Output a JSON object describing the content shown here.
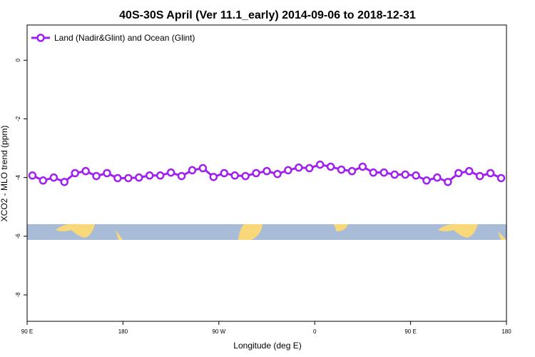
{
  "chart_data": {
    "type": "line",
    "title": "40S-30S April (Ver 11.1_early)   2014-09-06 to 2018-12-31",
    "xlabel": "Longitude (deg E)",
    "ylabel": "XCO2 - MLO trend (ppm)",
    "legend": "upper left",
    "x": [
      95,
      105,
      115,
      125,
      135,
      145,
      155,
      165,
      175,
      185,
      195,
      205,
      215,
      225,
      235,
      245,
      255,
      265,
      275,
      285,
      295,
      305,
      315,
      325,
      335,
      345,
      355,
      365,
      375,
      385,
      395,
      405,
      415,
      425,
      435,
      445,
      455,
      465,
      475,
      485,
      495,
      505,
      515,
      525,
      535
    ],
    "series": [
      {
        "name": "Land (Nadir&Glint) and Ocean (Glint)",
        "color": "#a020f0",
        "values": [
          -3.93,
          -4.1,
          -4.0,
          -4.15,
          -3.85,
          -3.78,
          -3.95,
          -3.85,
          -4.02,
          -4.02,
          -4.0,
          -3.93,
          -3.93,
          -3.83,
          -3.95,
          -3.75,
          -3.68,
          -3.98,
          -3.85,
          -3.93,
          -3.95,
          -3.85,
          -3.78,
          -3.88,
          -3.75,
          -3.66,
          -3.68,
          -3.56,
          -3.63,
          -3.73,
          -3.78,
          -3.63,
          -3.83,
          -3.83,
          -3.9,
          -3.9,
          -3.93,
          -4.1,
          -4.0,
          -4.15,
          -3.85,
          -3.78,
          -3.95,
          -3.85,
          -4.02
        ]
      }
    ],
    "xlim": [
      90,
      540
    ],
    "xticks": [
      {
        "value": 90,
        "label": "90 E"
      },
      180,
      {
        "value": 270,
        "label": "90 W"
      },
      {
        "value": 360,
        "label": "0"
      },
      {
        "value": 450,
        "label": "90 E"
      },
      {
        "value": 540,
        "label": "180"
      }
    ],
    "ylim": [
      -8.9,
      1.2
    ],
    "yticks": [
      0,
      -2,
      -4,
      -6,
      -8
    ]
  }
}
